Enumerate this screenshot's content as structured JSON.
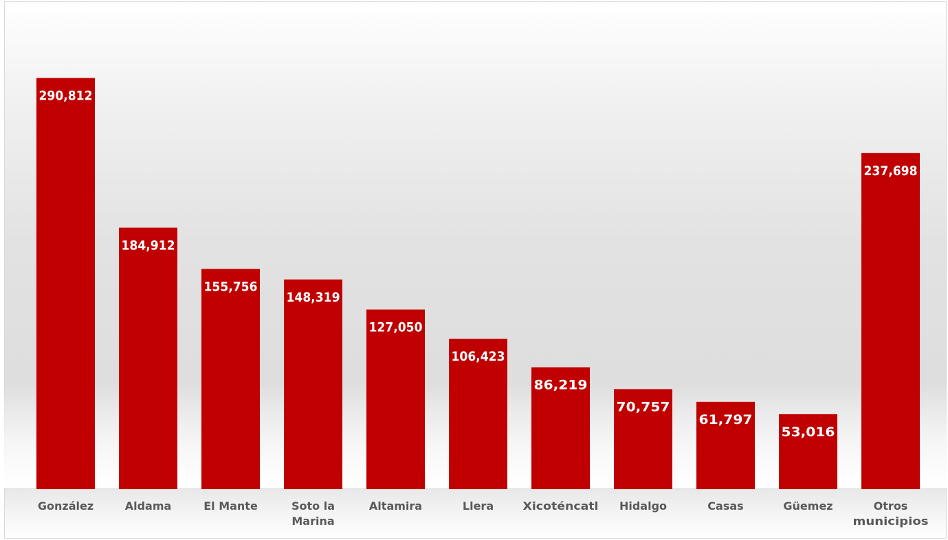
{
  "chart_data": {
    "type": "bar",
    "categories": [
      [
        "González"
      ],
      [
        "Aldama"
      ],
      [
        "El Mante"
      ],
      [
        "Soto la",
        "Marina"
      ],
      [
        "Altamira"
      ],
      [
        "Llera"
      ],
      [
        "Xicoténcatl"
      ],
      [
        "Hidalgo"
      ],
      [
        "Casas"
      ],
      [
        "Güemez"
      ],
      [
        "Otros",
        "municipios"
      ]
    ],
    "values": [
      290812,
      184912,
      155756,
      148319,
      127050,
      106423,
      86219,
      70757,
      61797,
      53016,
      237698
    ],
    "value_labels": [
      "290,812",
      "184,912",
      "155,756",
      "148,319",
      "127,050",
      "106,423",
      "86,219",
      "70,757",
      "61,797",
      "53,016",
      "237,698"
    ],
    "title": "",
    "xlabel": "",
    "ylabel": "",
    "ylim": [
      0,
      345000
    ],
    "grid": false,
    "legend": "none",
    "colors": {
      "bar": "#c00000",
      "label": "#ffffff",
      "category": "#595959"
    }
  }
}
